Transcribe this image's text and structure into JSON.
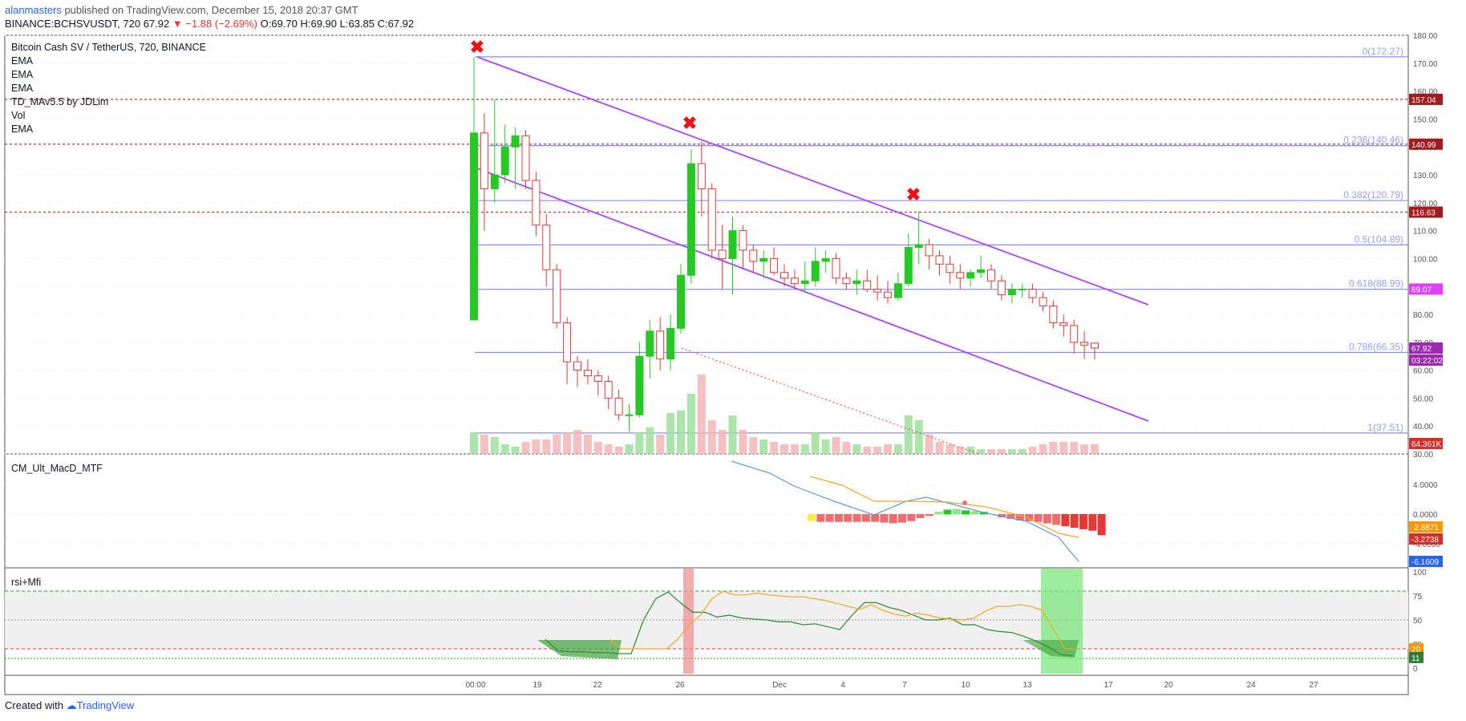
{
  "header": {
    "author": "alanmasters",
    "published_text": "published on TradingView.com, December 15, 2018 20:37 GMT",
    "symbol_line": "BINANCE:BCHSVUSDT, 720",
    "last": "67.92",
    "change": "−1.88 (−2.69%)",
    "ohlc": "O:69.70 H:69.90 L:63.85 C:67.92"
  },
  "legend": {
    "title": "Bitcoin Cash SV / TetherUS, 720, BINANCE",
    "items": [
      "EMA",
      "EMA",
      "EMA",
      "TD_MAv5.5 by JDLim",
      "Vol",
      "EMA"
    ]
  },
  "panes": {
    "macd_title": "CM_Ult_MacD_MTF",
    "rsi_title": "rsi+Mfi"
  },
  "price_axis": {
    "ticks": [
      "180.00",
      "170.00",
      "160.00",
      "150.00",
      "140.00",
      "130.00",
      "120.00",
      "110.00",
      "100.00",
      "90.00",
      "80.00",
      "70.00",
      "60.00",
      "50.00",
      "40.00",
      "30.00"
    ],
    "badges": {
      "h157": "157.04",
      "h141": "140.99",
      "h116": "116.63",
      "ema": "89.07",
      "last": "67.92",
      "timer": "03:22:02",
      "vol": "64.361K"
    }
  },
  "macd_axis": {
    "ticks": [
      "4.0000",
      "0.0000",
      "-4.0000"
    ],
    "badges": {
      "a": "-2.8871",
      "b": "-3.2738",
      "c": "-6.1609"
    }
  },
  "rsi_axis": {
    "ticks": [
      "100",
      "75",
      "50",
      "25",
      "0"
    ],
    "badges": {
      "a": "20",
      "b": "11"
    }
  },
  "fib_labels": [
    "0(172.27)",
    "0.236(140.46)",
    "0.382(120.79)",
    "0.5(104.89)",
    "0.618(88.99)",
    "0.786(66.35)",
    "1(37.51)"
  ],
  "time_axis": [
    "00:00",
    "19",
    "22",
    "26",
    "Dec",
    "4",
    "7",
    "10",
    "13",
    "17",
    "20",
    "24",
    "27"
  ],
  "footer": {
    "created_with": "Created with",
    "brand": "TradingView"
  },
  "colors": {
    "up": "#26c924",
    "down": "#e53935",
    "channel": "#aa44ff",
    "fib": "#8a8ef0"
  },
  "chart_data": {
    "type": "candlestick",
    "title": "Bitcoin Cash SV / TetherUS, 720, BINANCE",
    "ylim": [
      30,
      180
    ],
    "candles": [
      {
        "o": 78,
        "h": 172,
        "l": 78,
        "c": 145
      },
      {
        "o": 145,
        "h": 152,
        "l": 110,
        "c": 125
      },
      {
        "o": 125,
        "h": 157,
        "l": 120,
        "c": 130
      },
      {
        "o": 130,
        "h": 148,
        "l": 127,
        "c": 140
      },
      {
        "o": 140,
        "h": 147,
        "l": 125,
        "c": 144
      },
      {
        "o": 144,
        "h": 146,
        "l": 125,
        "c": 128
      },
      {
        "o": 128,
        "h": 131,
        "l": 108,
        "c": 112
      },
      {
        "o": 112,
        "h": 116,
        "l": 90,
        "c": 96
      },
      {
        "o": 96,
        "h": 98,
        "l": 75,
        "c": 77
      },
      {
        "o": 77,
        "h": 79,
        "l": 55,
        "c": 63
      },
      {
        "o": 63,
        "h": 65,
        "l": 54,
        "c": 60
      },
      {
        "o": 60,
        "h": 64,
        "l": 55,
        "c": 58
      },
      {
        "o": 58,
        "h": 60,
        "l": 51,
        "c": 56
      },
      {
        "o": 56,
        "h": 58,
        "l": 46,
        "c": 50
      },
      {
        "o": 50,
        "h": 53,
        "l": 42,
        "c": 44
      },
      {
        "o": 44,
        "h": 48,
        "l": 38,
        "c": 44
      },
      {
        "o": 44,
        "h": 70,
        "l": 43,
        "c": 65
      },
      {
        "o": 65,
        "h": 78,
        "l": 57,
        "c": 74
      },
      {
        "o": 74,
        "h": 79,
        "l": 60,
        "c": 64
      },
      {
        "o": 64,
        "h": 80,
        "l": 60,
        "c": 75
      },
      {
        "o": 75,
        "h": 98,
        "l": 73,
        "c": 94
      },
      {
        "o": 94,
        "h": 139,
        "l": 91,
        "c": 134
      },
      {
        "o": 134,
        "h": 142,
        "l": 115,
        "c": 125
      },
      {
        "o": 125,
        "h": 127,
        "l": 100,
        "c": 103
      },
      {
        "o": 103,
        "h": 112,
        "l": 89,
        "c": 100
      },
      {
        "o": 100,
        "h": 115,
        "l": 87,
        "c": 110
      },
      {
        "o": 110,
        "h": 112,
        "l": 96,
        "c": 103
      },
      {
        "o": 103,
        "h": 105,
        "l": 95,
        "c": 99
      },
      {
        "o": 99,
        "h": 103,
        "l": 93,
        "c": 100
      },
      {
        "o": 100,
        "h": 104,
        "l": 94,
        "c": 95
      },
      {
        "o": 95,
        "h": 98,
        "l": 90,
        "c": 93
      },
      {
        "o": 93,
        "h": 96,
        "l": 89,
        "c": 91
      },
      {
        "o": 91,
        "h": 99,
        "l": 88,
        "c": 92
      },
      {
        "o": 92,
        "h": 104,
        "l": 90,
        "c": 99
      },
      {
        "o": 99,
        "h": 103,
        "l": 95,
        "c": 100
      },
      {
        "o": 100,
        "h": 102,
        "l": 91,
        "c": 93
      },
      {
        "o": 93,
        "h": 95,
        "l": 89,
        "c": 91
      },
      {
        "o": 91,
        "h": 96,
        "l": 87,
        "c": 92
      },
      {
        "o": 92,
        "h": 96,
        "l": 88,
        "c": 89
      },
      {
        "o": 89,
        "h": 94,
        "l": 85,
        "c": 88
      },
      {
        "o": 88,
        "h": 92,
        "l": 84,
        "c": 86
      },
      {
        "o": 86,
        "h": 95,
        "l": 85,
        "c": 91
      },
      {
        "o": 91,
        "h": 109,
        "l": 90,
        "c": 104
      },
      {
        "o": 104,
        "h": 117,
        "l": 98,
        "c": 105
      },
      {
        "o": 105,
        "h": 107,
        "l": 96,
        "c": 101
      },
      {
        "o": 101,
        "h": 103,
        "l": 94,
        "c": 98
      },
      {
        "o": 98,
        "h": 101,
        "l": 91,
        "c": 95
      },
      {
        "o": 95,
        "h": 98,
        "l": 89,
        "c": 93
      },
      {
        "o": 93,
        "h": 96,
        "l": 90,
        "c": 95
      },
      {
        "o": 95,
        "h": 101,
        "l": 93,
        "c": 96
      },
      {
        "o": 96,
        "h": 98,
        "l": 89,
        "c": 92
      },
      {
        "o": 92,
        "h": 94,
        "l": 85,
        "c": 87
      },
      {
        "o": 87,
        "h": 91,
        "l": 84,
        "c": 89
      },
      {
        "o": 89,
        "h": 91,
        "l": 86,
        "c": 89
      },
      {
        "o": 89,
        "h": 91,
        "l": 84,
        "c": 86
      },
      {
        "o": 86,
        "h": 88,
        "l": 81,
        "c": 83
      },
      {
        "o": 83,
        "h": 85,
        "l": 75,
        "c": 77
      },
      {
        "o": 77,
        "h": 80,
        "l": 72,
        "c": 76
      },
      {
        "o": 76,
        "h": 78,
        "l": 66,
        "c": 70
      },
      {
        "o": 70,
        "h": 74,
        "l": 64,
        "c": 69
      },
      {
        "o": 69.7,
        "h": 69.9,
        "l": 63.85,
        "c": 67.92
      }
    ],
    "volume_relative": [
      0.9,
      0.8,
      0.7,
      0.4,
      0.3,
      0.5,
      0.6,
      0.6,
      0.8,
      0.9,
      1.0,
      0.8,
      0.5,
      0.4,
      0.3,
      0.4,
      0.9,
      1.1,
      0.8,
      1.7,
      1.8,
      2.5,
      3.3,
      1.4,
      1.0,
      1.6,
      1.0,
      0.7,
      0.6,
      0.5,
      0.4,
      0.4,
      0.4,
      0.9,
      0.6,
      0.7,
      0.5,
      0.4,
      0.3,
      0.3,
      0.4,
      0.4,
      1.6,
      1.4,
      0.8,
      0.5,
      0.4,
      0.3,
      0.3,
      0.2,
      0.2,
      0.2,
      0.2,
      0.2,
      0.3,
      0.4,
      0.5,
      0.5,
      0.5,
      0.4,
      0.4
    ],
    "fibonacci": [
      {
        "level": "0",
        "price": 172.27
      },
      {
        "level": "0.236",
        "price": 140.46
      },
      {
        "level": "0.382",
        "price": 120.79
      },
      {
        "level": "0.5",
        "price": 104.89
      },
      {
        "level": "0.618",
        "price": 88.99
      },
      {
        "level": "0.786",
        "price": 66.35
      },
      {
        "level": "1",
        "price": 37.51
      }
    ],
    "horizontal_lines": [
      157.04,
      140.99,
      116.63
    ],
    "macd_hist": [
      -0.9,
      -1.0,
      -1.0,
      -1.0,
      -1.0,
      -1.0,
      -1.0,
      -1.0,
      -1.1,
      -1.2,
      -1.1,
      -0.9,
      -0.5,
      -0.2,
      0.3,
      0.6,
      0.7,
      0.5,
      0.4,
      0.3,
      0.0,
      -0.4,
      -0.6,
      -0.8,
      -0.9,
      -1.0,
      -1.2,
      -1.4,
      -1.6,
      -1.8,
      -2.0,
      -2.2,
      -2.8
    ],
    "rsi": [
      30,
      18,
      17,
      17,
      16,
      16,
      15,
      15,
      50,
      72,
      79,
      68,
      58,
      58,
      53,
      55,
      52,
      51,
      50,
      48,
      48,
      45,
      46,
      43,
      40,
      55,
      68,
      68,
      63,
      60,
      55,
      50,
      50,
      52,
      45,
      45,
      40,
      38,
      37,
      33,
      28,
      22,
      14,
      13
    ],
    "mfi": [
      30,
      20,
      20,
      20,
      20,
      20,
      30,
      45,
      55,
      72,
      80,
      76,
      76,
      78,
      76,
      75,
      74,
      74,
      72,
      70,
      67,
      64,
      61,
      66,
      60,
      56,
      54,
      57,
      55,
      52,
      51,
      50,
      52,
      59,
      64,
      64,
      66,
      64,
      60,
      40,
      20,
      20
    ]
  }
}
